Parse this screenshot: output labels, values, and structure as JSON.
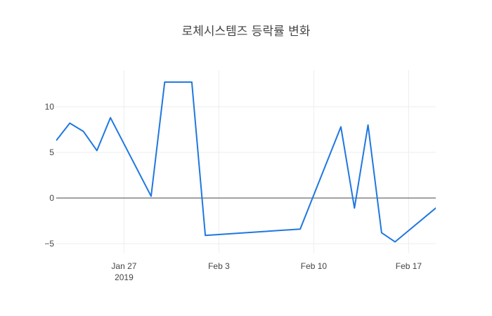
{
  "chart_data": {
    "type": "line",
    "title": "로체시스템즈 등락률 변화",
    "xlabel": "",
    "ylabel": "",
    "x_range": [
      "2019-01-22",
      "2019-02-19"
    ],
    "ylim": [
      -6,
      14
    ],
    "grid": true,
    "zero_line": true,
    "x_ticks": [
      {
        "date": "2019-01-27",
        "label": "Jan 27",
        "sublabel": "2019"
      },
      {
        "date": "2019-02-03",
        "label": "Feb 3",
        "sublabel": ""
      },
      {
        "date": "2019-02-10",
        "label": "Feb 10",
        "sublabel": ""
      },
      {
        "date": "2019-02-17",
        "label": "Feb 17",
        "sublabel": ""
      }
    ],
    "y_ticks": [
      {
        "value": 10,
        "label": "10"
      },
      {
        "value": 5,
        "label": "5"
      },
      {
        "value": 0,
        "label": "0"
      },
      {
        "value": -5,
        "label": "−5"
      }
    ],
    "series": [
      {
        "color": "#1f77e0",
        "points": [
          {
            "x": "2019-01-22",
            "y": 6.3
          },
          {
            "x": "2019-01-23",
            "y": 8.2
          },
          {
            "x": "2019-01-24",
            "y": 7.3
          },
          {
            "x": "2019-01-25",
            "y": 5.2
          },
          {
            "x": "2019-01-26",
            "y": 8.8
          },
          {
            "x": "2019-01-29",
            "y": 0.2
          },
          {
            "x": "2019-01-30",
            "y": 12.7
          },
          {
            "x": "2019-01-31",
            "y": 12.7
          },
          {
            "x": "2019-02-01",
            "y": 12.7
          },
          {
            "x": "2019-02-02",
            "y": -4.1
          },
          {
            "x": "2019-02-09",
            "y": -3.4
          },
          {
            "x": "2019-02-12",
            "y": 7.8
          },
          {
            "x": "2019-02-13",
            "y": -1.1
          },
          {
            "x": "2019-02-14",
            "y": 8.0
          },
          {
            "x": "2019-02-15",
            "y": -3.8
          },
          {
            "x": "2019-02-16",
            "y": -4.8
          },
          {
            "x": "2019-02-19",
            "y": -1.1
          },
          {
            "x": "2019-02-20",
            "y": -0.4
          }
        ]
      }
    ]
  }
}
